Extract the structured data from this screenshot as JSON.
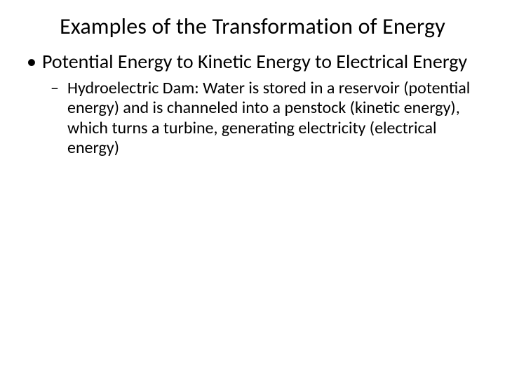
{
  "slide": {
    "title": "Examples of the Transformation of Energy",
    "title_fontsize": 32,
    "background_color": "#ffffff",
    "text_color": "#000000",
    "bullets": [
      {
        "text": "Potential Energy to Kinetic Energy to Electrical Energy",
        "fontsize": 28,
        "marker": "•",
        "children": [
          {
            "text": "Hydroelectric Dam: Water is stored in a reservoir (potential energy) and is channeled into a penstock (kinetic energy), which turns a turbine, generating electricity (electrical energy)",
            "fontsize": 24,
            "marker": "–"
          }
        ]
      }
    ]
  }
}
